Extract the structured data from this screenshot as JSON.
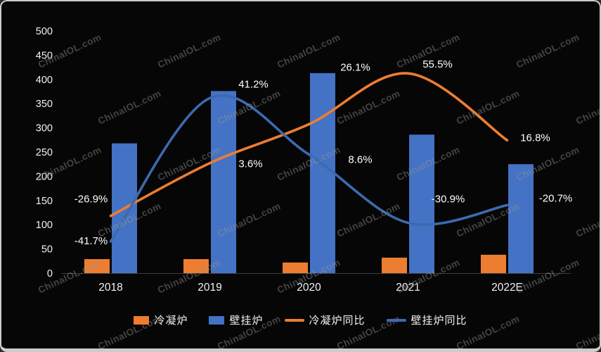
{
  "watermark": {
    "text": "ChinaIOL.com",
    "color": "#979797"
  },
  "chart_data": {
    "type": "combo-bar-line",
    "title": "",
    "categories": [
      "2018",
      "2019",
      "2020",
      "2021",
      "2022E"
    ],
    "bar_series": [
      {
        "name": "冷凝炉",
        "color": "#ED7D31",
        "values": [
          29,
          29,
          22,
          32,
          38
        ]
      },
      {
        "name": "壁挂炉",
        "color": "#4472C4",
        "values": [
          268,
          376,
          413,
          286,
          225
        ]
      }
    ],
    "line_series": [
      {
        "name": "冷凝炉同比",
        "color": "#ED7D31",
        "values_pct": [
          -26.9,
          3.6,
          26.1,
          55.5,
          16.8
        ],
        "labels": [
          "-26.9%",
          "3.6%",
          "26.1%",
          "55.5%",
          "16.8%"
        ]
      },
      {
        "name": "壁挂炉同比",
        "color": "#3C6AB0",
        "values_pct": [
          -41.7,
          41.2,
          8.6,
          -30.9,
          -20.7
        ],
        "labels": [
          "-41.7%",
          "41.2%",
          "8.6%",
          "-30.9%",
          "-20.7%"
        ]
      }
    ],
    "y_axis": {
      "min": 0,
      "max": 500,
      "step": 50,
      "ticks": [
        "0",
        "50",
        "100",
        "150",
        "200",
        "250",
        "300",
        "350",
        "400",
        "450",
        "500"
      ]
    },
    "secondary_axis": {
      "min": -60,
      "max": 80,
      "visible": false
    },
    "grid": false,
    "legend_position": "bottom",
    "background": "#060606",
    "text_color": "#f2f2f2"
  }
}
